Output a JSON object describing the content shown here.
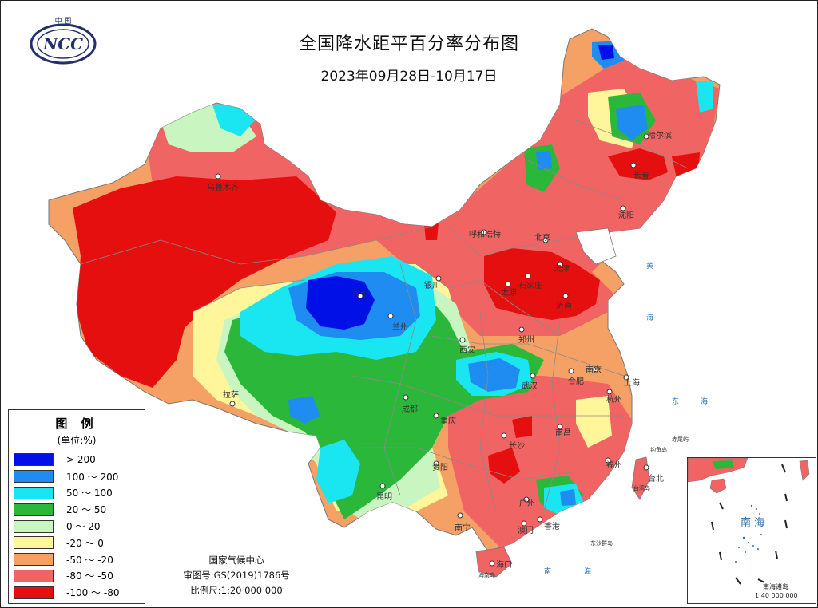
{
  "map": {
    "title": "全国降水距平百分率分布图",
    "subtitle": "2023年09月28日-10月17日",
    "logo_text": {
      "top": "中 国",
      "main": "NCC"
    },
    "colors": {
      "gt200": "#0010e6",
      "c100_200": "#1e8cf0",
      "c50_100": "#19e6f0",
      "c20_50": "#2bb83a",
      "c0_20": "#c8f5c0",
      "cm20_0": "#fff59a",
      "cm50_m20": "#f5a064",
      "cm80_m50": "#f06464",
      "cm100_m80": "#e60f0f"
    },
    "legend": {
      "title": "图 例",
      "unit": "(单位:%)",
      "items": [
        {
          "label": "> 200",
          "color": "#0010e6"
        },
        {
          "label": "100 ～ 200",
          "color": "#1e8cf0"
        },
        {
          "label": "50 ～ 100",
          "color": "#19e6f0"
        },
        {
          "label": "20 ～ 50",
          "color": "#2bb83a"
        },
        {
          "label": "0 ～ 20",
          "color": "#c8f5c0"
        },
        {
          "label": "-20 ～ 0",
          "color": "#fff59a"
        },
        {
          "label": "-50 ～ -20",
          "color": "#f5a064"
        },
        {
          "label": "-80 ～ -50",
          "color": "#f06464"
        },
        {
          "label": "-100 ～ -80",
          "color": "#e60f0f"
        }
      ]
    },
    "cities": {
      "urumqi": "乌鲁木齐",
      "harbin": "哈尔滨",
      "changchun": "长春",
      "shenyang": "沈阳",
      "hohhot": "呼和浩特",
      "beijing": "北京",
      "tianjin": "天津",
      "shijiazhuang": "石家庄",
      "taiyuan": "太原",
      "jinan": "济南",
      "yinchuan": "银川",
      "xining": "西宁",
      "lanzhou": "兰州",
      "xian": "西安",
      "zhengzhou": "郑州",
      "nanjing": "南京",
      "hefei": "合肥",
      "shanghai": "上海",
      "wuhan": "武汉",
      "hangzhou": "杭州",
      "lhasa": "拉萨",
      "chengdu": "成都",
      "chongqing": "重庆",
      "changsha": "长沙",
      "nanchang": "南昌",
      "fuzhou": "福州",
      "taipei": "台北",
      "guiyang": "贵阳",
      "kunming": "昆明",
      "guangzhou": "广州",
      "nanning": "南宁",
      "macau": "澳门",
      "hongkong": "香港",
      "haikou": "海口"
    },
    "seas": {
      "huang": "黄",
      "hai1": "海",
      "dong": "东",
      "hai2": "海",
      "nan": "南",
      "hai3": "海"
    },
    "islands": {
      "diaoyu": "钓鱼岛",
      "chiwei": "赤尾屿",
      "taiwan": "台湾岛",
      "dongsha": "东沙群岛",
      "hainan": "海南岛"
    },
    "inset": {
      "sea_label": "南 海",
      "islands": "南海诸岛",
      "scale": "1:40 000 000"
    },
    "credits": {
      "center": "国家气候中心",
      "approval": "审图号:GS(2019)1786号",
      "scale": "比例尺:1:20 000 000"
    }
  }
}
